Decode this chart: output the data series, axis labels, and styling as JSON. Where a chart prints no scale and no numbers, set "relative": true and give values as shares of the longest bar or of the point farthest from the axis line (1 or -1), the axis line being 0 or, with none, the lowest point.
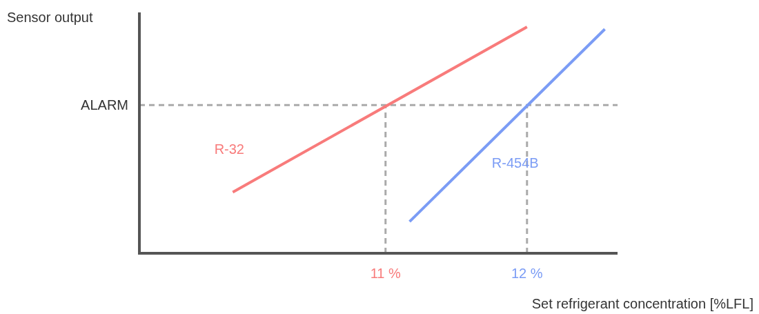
{
  "chart_data": {
    "type": "line",
    "relative": true,
    "ylabel": "Sensor output",
    "xlabel": "Set refrigerant concentration [%LFL]",
    "xlim": [
      9.26,
      12.64
    ],
    "xticks": [
      {
        "value": 11,
        "label": "11 %"
      },
      {
        "value": 12,
        "label": "12 %"
      }
    ],
    "series": [
      {
        "name": "R-32",
        "color": "#f87b7b",
        "x": [
          9.92,
          12.0
        ],
        "values": [
          0.27,
          1.0
        ]
      },
      {
        "name": "R-454B",
        "color": "#7b9cf5",
        "x": [
          11.17,
          12.55
        ],
        "values": [
          0.14,
          0.99
        ]
      }
    ],
    "ref_lines": [
      {
        "axis": "y",
        "value": 0.655,
        "label": "ALARM",
        "color": "#aaaaaa",
        "line_style": "dashed"
      },
      {
        "axis": "x",
        "value": 11,
        "color": "#aaaaaa",
        "line_style": "dashed"
      },
      {
        "axis": "x",
        "value": 12,
        "color": "#aaaaaa",
        "line_style": "dashed"
      }
    ]
  }
}
